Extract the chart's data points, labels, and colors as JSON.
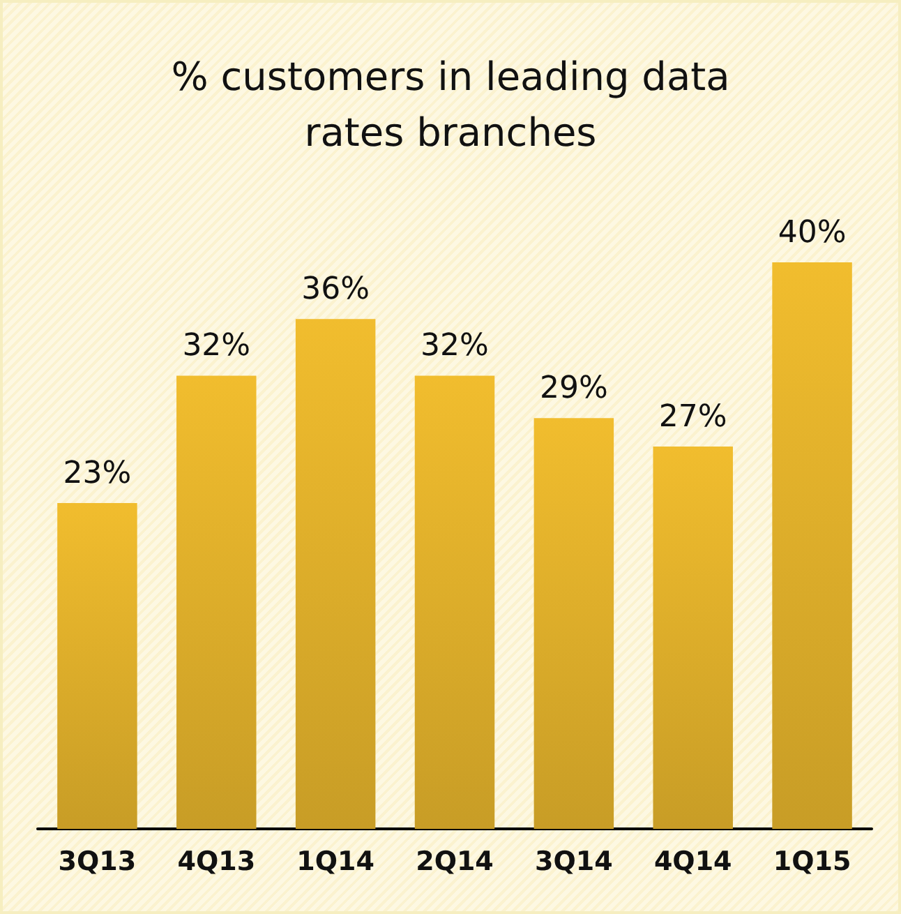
{
  "chart_data": {
    "type": "bar",
    "title": "% customers in leading data\nrates branches",
    "categories": [
      "3Q13",
      "4Q13",
      "1Q14",
      "2Q14",
      "3Q14",
      "4Q14",
      "1Q15"
    ],
    "values": [
      23,
      32,
      36,
      32,
      29,
      27,
      40
    ],
    "value_labels": [
      "23%",
      "32%",
      "36%",
      "32%",
      "29%",
      "27%",
      "40%"
    ],
    "color": "#e8b62c"
  }
}
